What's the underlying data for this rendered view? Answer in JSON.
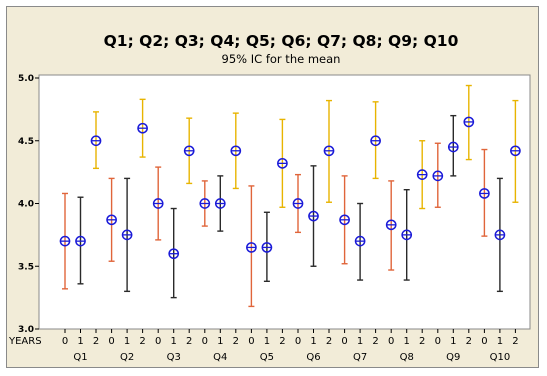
{
  "chart_data": {
    "type": "interval",
    "title": "Q1; Q2; Q3; Q4; Q5; Q6; Q7; Q8; Q9; Q10",
    "subtitle": "95% IC for the mean",
    "x_axis_label": "YEARS",
    "year_labels": [
      "0",
      "1",
      "2"
    ],
    "groups": [
      "Q1",
      "Q2",
      "Q3",
      "Q4",
      "Q5",
      "Q6",
      "Q7",
      "Q8",
      "Q9",
      "Q10"
    ],
    "ylim": [
      3.0,
      5.0
    ],
    "yticks": [
      "3.0",
      "3.5",
      "4.0",
      "4.5",
      "5.0"
    ],
    "grid": false,
    "legend": "none",
    "year_colors": [
      "#e0653a",
      "#2a2a2a",
      "#e8b400"
    ],
    "marker_color": "#1a1ad8",
    "series": [
      {
        "group": "Q1",
        "year": "0",
        "mean": 3.7,
        "low": 3.32,
        "high": 4.08
      },
      {
        "group": "Q1",
        "year": "1",
        "mean": 3.7,
        "low": 3.36,
        "high": 4.05
      },
      {
        "group": "Q1",
        "year": "2",
        "mean": 4.5,
        "low": 4.28,
        "high": 4.73
      },
      {
        "group": "Q2",
        "year": "0",
        "mean": 3.87,
        "low": 3.54,
        "high": 4.2
      },
      {
        "group": "Q2",
        "year": "1",
        "mean": 3.75,
        "low": 3.3,
        "high": 4.2
      },
      {
        "group": "Q2",
        "year": "2",
        "mean": 4.6,
        "low": 4.37,
        "high": 4.83
      },
      {
        "group": "Q3",
        "year": "0",
        "mean": 4.0,
        "low": 3.71,
        "high": 4.29
      },
      {
        "group": "Q3",
        "year": "1",
        "mean": 3.6,
        "low": 3.25,
        "high": 3.96
      },
      {
        "group": "Q3",
        "year": "2",
        "mean": 4.42,
        "low": 4.16,
        "high": 4.68
      },
      {
        "group": "Q4",
        "year": "0",
        "mean": 4.0,
        "low": 3.82,
        "high": 4.18
      },
      {
        "group": "Q4",
        "year": "1",
        "mean": 4.0,
        "low": 3.78,
        "high": 4.22
      },
      {
        "group": "Q4",
        "year": "2",
        "mean": 4.42,
        "low": 4.12,
        "high": 4.72
      },
      {
        "group": "Q5",
        "year": "0",
        "mean": 3.65,
        "low": 3.18,
        "high": 4.14
      },
      {
        "group": "Q5",
        "year": "1",
        "mean": 3.65,
        "low": 3.38,
        "high": 3.93
      },
      {
        "group": "Q5",
        "year": "2",
        "mean": 4.32,
        "low": 3.97,
        "high": 4.67
      },
      {
        "group": "Q6",
        "year": "0",
        "mean": 4.0,
        "low": 3.77,
        "high": 4.23
      },
      {
        "group": "Q6",
        "year": "1",
        "mean": 3.9,
        "low": 3.5,
        "high": 4.3
      },
      {
        "group": "Q6",
        "year": "2",
        "mean": 4.42,
        "low": 4.01,
        "high": 4.82
      },
      {
        "group": "Q7",
        "year": "0",
        "mean": 3.87,
        "low": 3.52,
        "high": 4.22
      },
      {
        "group": "Q7",
        "year": "1",
        "mean": 3.7,
        "low": 3.39,
        "high": 4.0
      },
      {
        "group": "Q7",
        "year": "2",
        "mean": 4.5,
        "low": 4.2,
        "high": 4.81
      },
      {
        "group": "Q8",
        "year": "0",
        "mean": 3.83,
        "low": 3.47,
        "high": 4.18
      },
      {
        "group": "Q8",
        "year": "1",
        "mean": 3.75,
        "low": 3.39,
        "high": 4.11
      },
      {
        "group": "Q8",
        "year": "2",
        "mean": 4.23,
        "low": 3.96,
        "high": 4.5
      },
      {
        "group": "Q9",
        "year": "0",
        "mean": 4.22,
        "low": 3.97,
        "high": 4.48
      },
      {
        "group": "Q9",
        "year": "1",
        "mean": 4.45,
        "low": 4.22,
        "high": 4.7
      },
      {
        "group": "Q9",
        "year": "2",
        "mean": 4.65,
        "low": 4.35,
        "high": 4.94
      },
      {
        "group": "Q10",
        "year": "0",
        "mean": 4.08,
        "low": 3.74,
        "high": 4.43
      },
      {
        "group": "Q10",
        "year": "1",
        "mean": 3.75,
        "low": 3.3,
        "high": 4.2
      },
      {
        "group": "Q10",
        "year": "2",
        "mean": 4.42,
        "low": 4.01,
        "high": 4.82
      }
    ]
  }
}
